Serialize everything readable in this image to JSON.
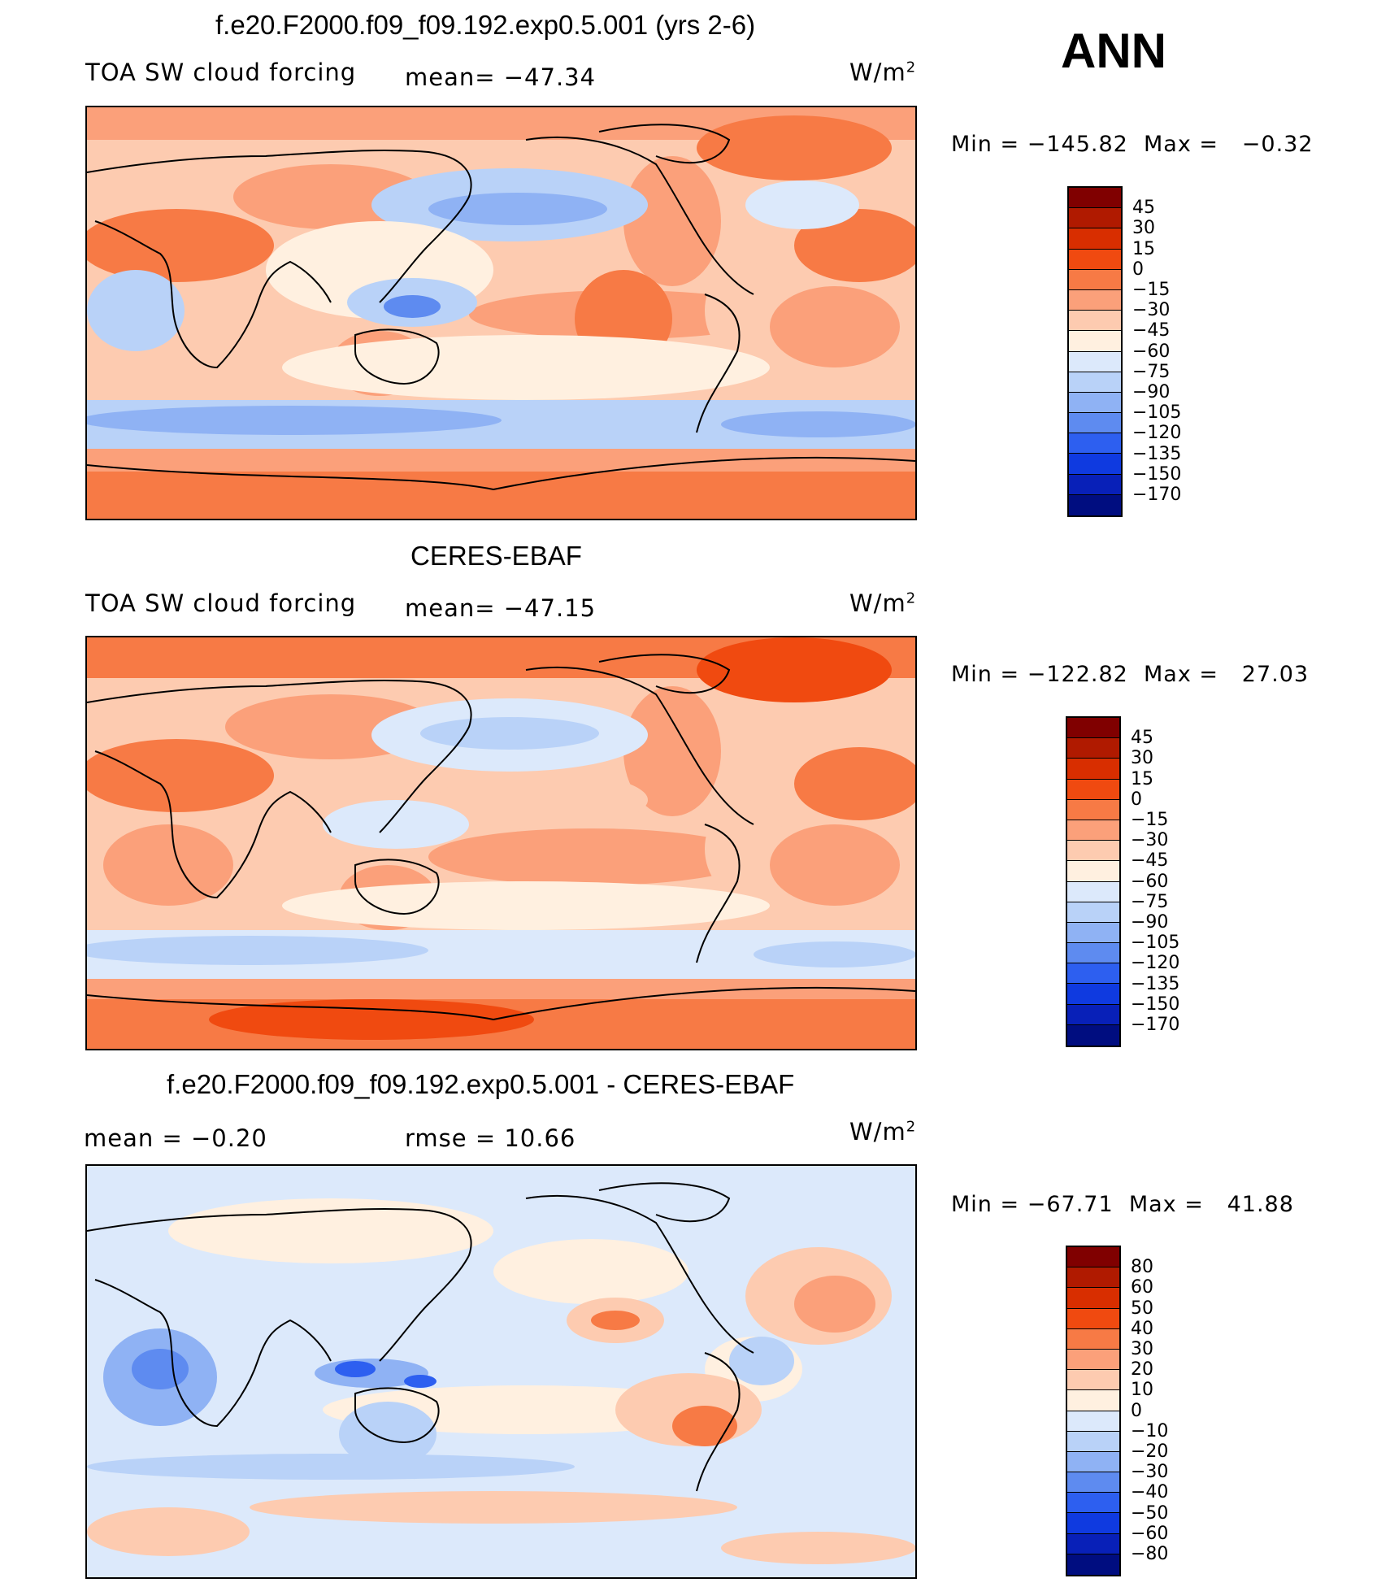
{
  "season": "ANN",
  "panels": [
    {
      "title": "f.e20.F2000.f09_f09.192.exp0.5.001 (yrs 2-6)",
      "left_label": "TOA SW cloud forcing",
      "center_label": "mean= −47.34",
      "units": "W/m",
      "units_sup": "2",
      "min_label": "Min",
      "min_value": "−145.82",
      "max_label": "Max",
      "max_value": "−0.32",
      "legend_labels": [
        "45",
        "30",
        "15",
        "0",
        "−15",
        "−30",
        "−45",
        "−60",
        "−75",
        "−90",
        "−105",
        "−120",
        "−135",
        "−150",
        "−170"
      ]
    },
    {
      "title": "CERES-EBAF",
      "left_label": "TOA SW cloud forcing",
      "center_label": "mean= −47.15",
      "units": "W/m",
      "units_sup": "2",
      "min_label": "Min",
      "min_value": "−122.82",
      "max_label": "Max",
      "max_value": "27.03",
      "legend_labels": [
        "45",
        "30",
        "15",
        "0",
        "−15",
        "−30",
        "−45",
        "−60",
        "−75",
        "−90",
        "−105",
        "−120",
        "−135",
        "−150",
        "−170"
      ]
    },
    {
      "title": "f.e20.F2000.f09_f09.192.exp0.5.001 - CERES-EBAF",
      "left_label": "mean =   −0.20",
      "center_label": "rmse =   10.66",
      "units": "W/m",
      "units_sup": "2",
      "min_label": "Min",
      "min_value": "−67.71",
      "max_label": "Max",
      "max_value": "41.88",
      "legend_labels": [
        "80",
        "60",
        "50",
        "40",
        "30",
        "20",
        "10",
        "0",
        "−10",
        "−20",
        "−30",
        "−40",
        "−50",
        "−60",
        "−80"
      ]
    }
  ],
  "colorbar_colors": [
    "#800000",
    "#b01a00",
    "#d82e00",
    "#f04a10",
    "#f77a45",
    "#fba07a",
    "#fdcbb0",
    "#fff0e0",
    "#dce9fb",
    "#b9d2f8",
    "#8fb2f4",
    "#5e8bf0",
    "#2d5ff0",
    "#0f3ae0",
    "#0820b8",
    "#000d80"
  ]
}
